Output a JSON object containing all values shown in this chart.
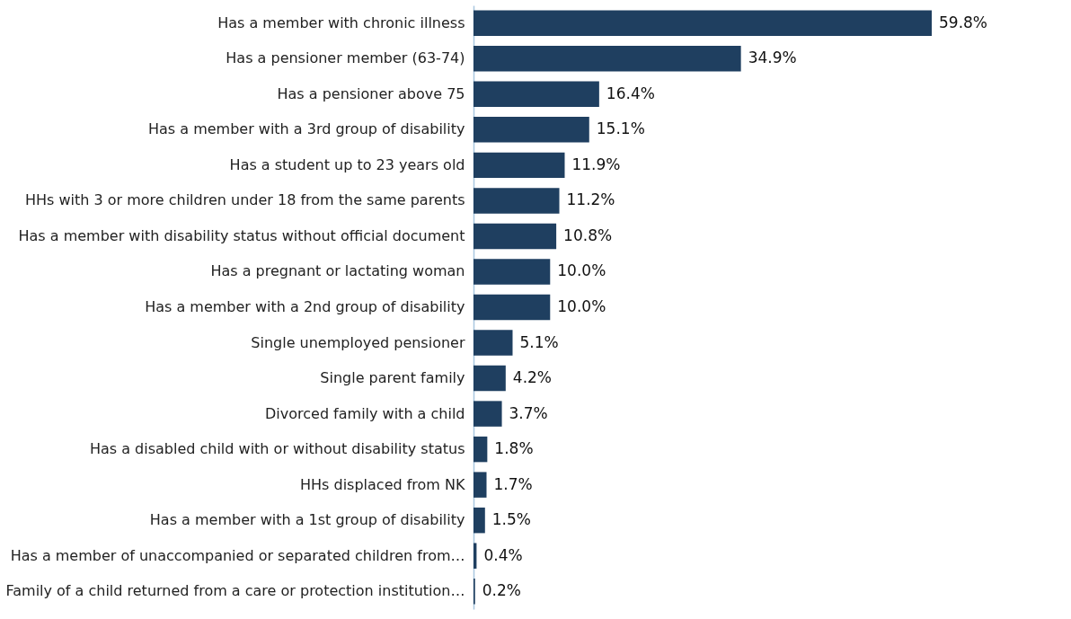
{
  "chart_data": {
    "type": "bar",
    "orientation": "horizontal",
    "categories": [
      "Has a member with chronic illness",
      "Has a pensioner member (63-74)",
      "Has a pensioner above 75",
      "Has a member with a 3rd group of disability",
      "Has a student up to 23 years old",
      "HHs with 3 or more children under 18 from the same parents",
      "Has a member with disability status without official document",
      "Has a pregnant or lactating woman",
      "Has a member with a 2nd group of disability",
      "Single unemployed pensioner",
      "Single parent family",
      "Divorced family with a child",
      "Has a disabled child with or without disability status",
      "HHs displaced from NK",
      "Has a member with a 1st group of disability",
      "Has a member of unaccompanied or separated children from…",
      "Family of a child returned from a care or protection institution…"
    ],
    "values": [
      59.8,
      34.9,
      16.4,
      15.1,
      11.9,
      11.2,
      10.8,
      10.0,
      10.0,
      5.1,
      4.2,
      3.7,
      1.8,
      1.7,
      1.5,
      0.4,
      0.2
    ],
    "value_labels": [
      "59.8%",
      "34.9%",
      "16.4%",
      "15.1%",
      "11.9%",
      "11.2%",
      "10.8%",
      "10.0%",
      "10.0%",
      "5.1%",
      "4.2%",
      "3.7%",
      "1.8%",
      "1.7%",
      "1.5%",
      "0.4%",
      "0.2%"
    ],
    "color": "#1f3f60",
    "tick_labels": "y",
    "grid": false
  }
}
